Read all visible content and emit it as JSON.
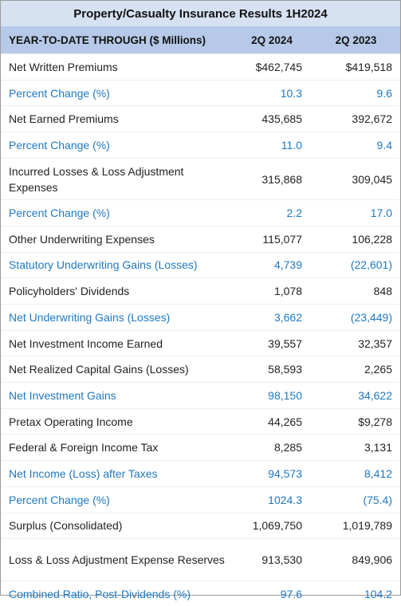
{
  "table": {
    "title": "Property/Casualty Insurance Results 1H2024",
    "header": [
      "YEAR-TO-DATE THROUGH ($ Millions)",
      "2Q 2024",
      "2Q 2023"
    ],
    "rows": [
      {
        "cells": [
          "Net Written Premiums",
          "$462,745",
          "$419,518"
        ],
        "color": "#222222"
      },
      {
        "cells": [
          "Percent Change (%)",
          "10.3",
          "9.6"
        ],
        "color": "#1f78c1"
      },
      {
        "cells": [
          "Net Earned Premiums",
          "435,685",
          "392,672"
        ],
        "color": "#222222"
      },
      {
        "cells": [
          "Percent Change (%)",
          "11.0",
          "9.4"
        ],
        "color": "#1f78c1"
      },
      {
        "cells": [
          "Incurred Losses & Loss Adjustment Expenses",
          "315,868",
          "309,045"
        ],
        "color": "#222222"
      },
      {
        "cells": [
          "Percent Change (%)",
          "2.2",
          "17.0"
        ],
        "color": "#1f78c1"
      },
      {
        "cells": [
          "Other Underwriting Expenses",
          "115,077",
          "106,228"
        ],
        "color": "#222222"
      },
      {
        "cells": [
          "Statutory Underwriting Gains (Losses)",
          "4,739",
          "(22,601)"
        ],
        "color": "#1f78c1"
      },
      {
        "cells": [
          "Policyholders' Dividends",
          "1,078",
          "848"
        ],
        "color": "#222222"
      },
      {
        "cells": [
          "Net Underwriting Gains (Losses)",
          "3,662",
          "(23,449)"
        ],
        "color": "#1f78c1"
      },
      {
        "cells": [
          "Net Investment Income Earned",
          "39,557",
          "32,357"
        ],
        "color": "#222222"
      },
      {
        "cells": [
          "Net Realized Capital Gains (Losses)",
          "58,593",
          "2,265"
        ],
        "color": "#222222"
      },
      {
        "cells": [
          "Net Investment Gains",
          "98,150",
          "34,622"
        ],
        "color": "#1f78c1"
      },
      {
        "cells": [
          "Pretax Operating Income",
          "44,265",
          "$9,278"
        ],
        "color": "#222222"
      },
      {
        "cells": [
          "Federal & Foreign Income Tax",
          "8,285",
          "3,131"
        ],
        "color": "#222222"
      },
      {
        "cells": [
          "Net Income (Loss) after Taxes",
          "94,573",
          "8,412"
        ],
        "color": "#1f78c1"
      },
      {
        "cells": [
          "Percent Change (%)",
          "1024.3",
          "(75.4)"
        ],
        "color": "#1f78c1"
      },
      {
        "cells": [
          "Surplus (Consolidated)",
          "1,069,750",
          "1,019,789"
        ],
        "color": "#222222"
      },
      {
        "cells": [
          "Loss & Loss Adjustment Expense Reserves",
          "913,530",
          "849,906"
        ],
        "color": "#222222"
      },
      {
        "cells": [
          "Combined Ratio, Post-Dividends (%)",
          "97.6",
          "104.2"
        ],
        "color": "#1f78c1"
      }
    ]
  }
}
